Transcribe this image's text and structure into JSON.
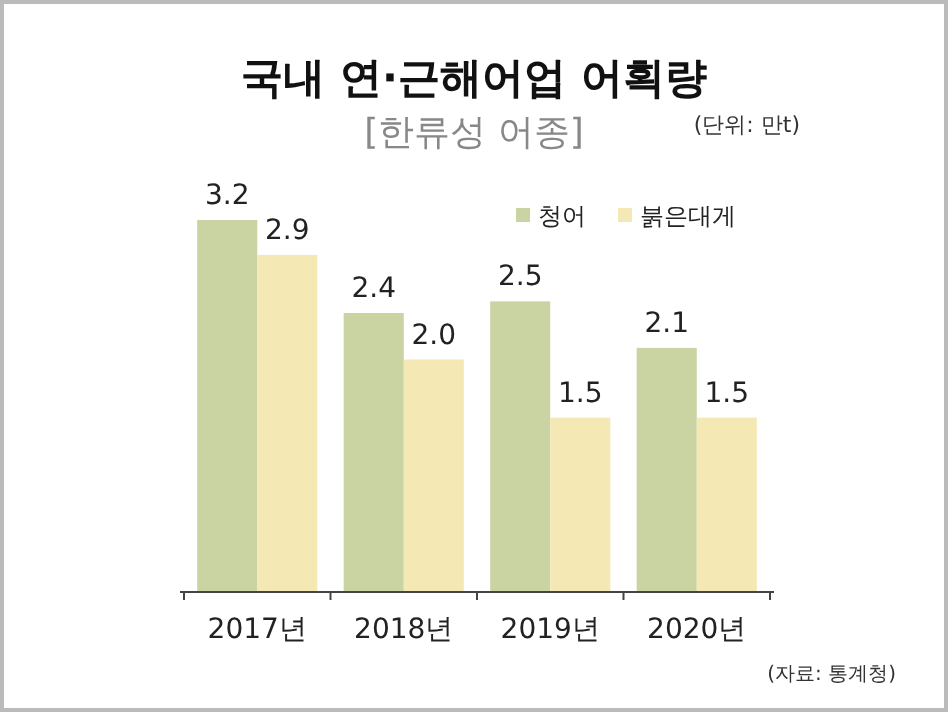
{
  "chart_data": {
    "type": "bar",
    "title": "국내 연·근해어업 어획량",
    "subtitle": "[한류성 어종]",
    "annotations": [
      "(단위: 만t)",
      "(자료: 통계청)"
    ],
    "categories": [
      "2017년",
      "2018년",
      "2019년",
      "2020년"
    ],
    "series": [
      {
        "name": "청어",
        "color": "#c9d4a2",
        "values": [
          3.2,
          2.4,
          2.5,
          2.1
        ],
        "value_labels": [
          "3.2",
          "2.4",
          "2.5",
          "2.1"
        ]
      },
      {
        "name": "붉은대게",
        "color": "#f4e8b5",
        "values": [
          2.9,
          2.0,
          1.5,
          1.5
        ],
        "value_labels": [
          "2.9",
          "2.0",
          "1.5",
          "1.5"
        ]
      }
    ],
    "legend": "top right"
  }
}
